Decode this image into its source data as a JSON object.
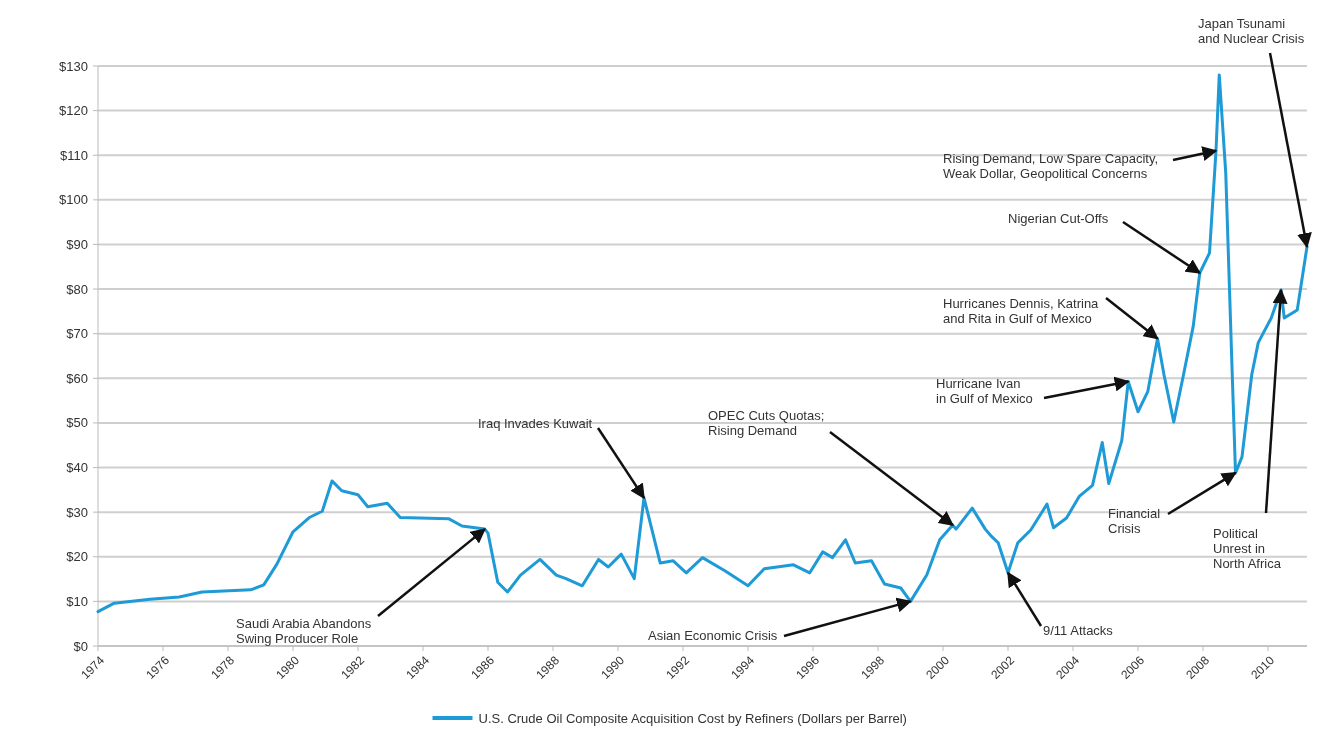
{
  "chart_data": {
    "type": "line",
    "x": [
      1974.0,
      1974.5,
      1975.6,
      1976.5,
      1977.2,
      1978.7,
      1979.1,
      1979.5,
      1980.0,
      1980.5,
      1980.9,
      1981.2,
      1981.5,
      1982.0,
      1982.3,
      1982.9,
      1983.3,
      1984.8,
      1985.2,
      1985.9,
      1986.0,
      1986.3,
      1986.6,
      1987.0,
      1987.6,
      1988.1,
      1988.4,
      1988.9,
      1989.4,
      1989.7,
      1990.1,
      1990.5,
      1990.8,
      1991.3,
      1991.7,
      1992.1,
      1992.6,
      1993.3,
      1994.0,
      1994.5,
      1995.4,
      1995.9,
      1996.3,
      1996.6,
      1997.0,
      1997.3,
      1997.8,
      1998.2,
      1998.7,
      1999.0,
      1999.5,
      1999.9,
      2000.3,
      2000.4,
      2000.9,
      2001.3,
      2001.5,
      2001.7,
      2002.0,
      2002.3,
      2002.7,
      2003.2,
      2003.4,
      2003.8,
      2004.2,
      2004.6,
      2004.9,
      2005.1,
      2005.5,
      2005.7,
      2006.0,
      2006.3,
      2006.6,
      2006.8,
      2007.1,
      2007.4,
      2007.7,
      2007.9,
      2008.2,
      2008.4,
      2008.5,
      2008.7,
      2008.9,
      2009.0,
      2009.2,
      2009.5,
      2009.7,
      2010.1,
      2010.4,
      2010.5,
      2010.9,
      2011.2
    ],
    "series": [
      {
        "name": "U.S. Crude Oil Composite Acquisition Cost by Refiners (Dollars per Barrel)",
        "color": "#1e9ad6",
        "values": [
          7.7,
          9.6,
          10.5,
          11.0,
          12.1,
          12.6,
          13.7,
          18.3,
          25.6,
          28.8,
          30.2,
          37,
          34.8,
          33.9,
          31.2,
          32,
          28.8,
          28.5,
          26.9,
          26.2,
          25.3,
          14.3,
          12.1,
          15.9,
          19.4,
          15.9,
          15.1,
          13.5,
          19.4,
          17.7,
          20.6,
          15.1,
          33.2,
          18.6,
          19.1,
          16.4,
          19.8,
          16.8,
          13.5,
          17.3,
          18.2,
          16.4,
          21.1,
          19.8,
          23.8,
          18.6,
          19.1,
          13.9,
          13,
          10,
          15.9,
          23.8,
          27.1,
          26.2,
          30.9,
          26.2,
          24.5,
          23.1,
          16.4,
          23.1,
          26,
          31.8,
          26.5,
          28.7,
          33.6,
          36,
          45.6,
          36.4,
          46,
          59.3,
          52.5,
          57,
          68.9,
          60.8,
          50.2,
          60.8,
          71.7,
          83.6,
          88.1,
          111,
          128,
          106,
          60.8,
          38.8,
          42.4,
          60.8,
          68,
          73.5,
          79.8,
          73.5,
          75.3,
          89.5
        ]
      }
    ],
    "xlim": [
      1974,
      2011.2
    ],
    "xticks": [
      1974,
      1976,
      1978,
      1980,
      1982,
      1984,
      1986,
      1988,
      1990,
      1992,
      1994,
      1996,
      1998,
      2000,
      2002,
      2004,
      2006,
      2008,
      2010
    ],
    "ylim": [
      0,
      130
    ],
    "yticks": [
      {
        "value": 0,
        "label": "$0"
      },
      {
        "value": 10,
        "label": "$10"
      },
      {
        "value": 20,
        "label": "$20"
      },
      {
        "value": 30,
        "label": "$30"
      },
      {
        "value": 40,
        "label": "$40"
      },
      {
        "value": 50,
        "label": "$50"
      },
      {
        "value": 60,
        "label": "$60"
      },
      {
        "value": 70,
        "label": "$70"
      },
      {
        "value": 80,
        "label": "$80"
      },
      {
        "value": 90,
        "label": "$90"
      },
      {
        "value": 100,
        "label": "$100"
      },
      {
        "value": 110,
        "label": "$110"
      },
      {
        "value": 120,
        "label": "$120"
      },
      {
        "value": 130,
        "label": "$130"
      }
    ],
    "grid": "y",
    "legend": "bottom",
    "marker": "none",
    "line_style": "solid",
    "annotations": [
      {
        "text": "Saudi Arabia Abandons\nSwing Producer Role",
        "x": 1985.9,
        "y": 26.2
      },
      {
        "text": "Iraq Invades Kuwait",
        "x": 1990.8,
        "y": 33.2
      },
      {
        "text": "OPEC Cuts Quotas;\nRising Demand",
        "x": 2000.3,
        "y": 27.1
      },
      {
        "text": "Asian Economic Crisis",
        "x": 1999.0,
        "y": 10
      },
      {
        "text": "9/11 Attacks",
        "x": 2002.0,
        "y": 16.4
      },
      {
        "text": "Hurricane Ivan\nin Gulf of Mexico",
        "x": 2005.7,
        "y": 59.3
      },
      {
        "text": "Hurricanes Dennis, Katrina\nand Rita in Gulf of Mexico",
        "x": 2006.6,
        "y": 68.9
      },
      {
        "text": "Nigerian Cut-Offs",
        "x": 2007.9,
        "y": 83.6
      },
      {
        "text": "Rising Demand, Low Spare Capacity,\nWeak Dollar, Geopolitical Concerns",
        "x": 2008.4,
        "y": 111
      },
      {
        "text": "Japan Tsunami\nand Nuclear Crisis",
        "x": 2011.2,
        "y": 89.5
      },
      {
        "text": "Financial\nCrisis",
        "x": 2009.0,
        "y": 38.8
      },
      {
        "text": "Political\nUnrest in\nNorth Africa",
        "x": 2010.4,
        "y": 79.8
      }
    ]
  }
}
